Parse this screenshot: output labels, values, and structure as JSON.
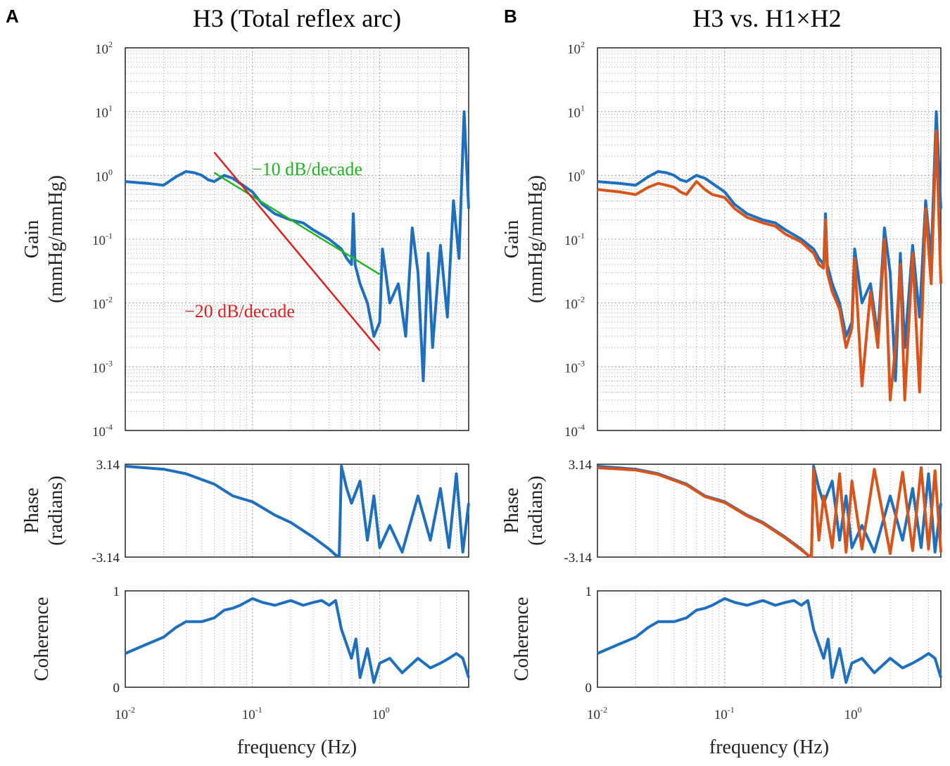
{
  "figure": {
    "panel_a": {
      "letter": "A",
      "title": "H3 (Total reflex arc)"
    },
    "panel_b": {
      "letter": "B",
      "title": "H3 vs. H1×H2"
    },
    "colors": {
      "h3": "#1f6fbf",
      "h1xh2": "#d9541a",
      "green": "#22b522",
      "red": "#e02020",
      "grid": "#9a9a9a"
    }
  },
  "chart_data": [
    {
      "panel": "A",
      "type": "line",
      "title": "H3 (Total reflex arc)",
      "xlabel": "frequency (Hz)",
      "xscale": "log",
      "xlim": [
        0.01,
        5
      ],
      "x_tick_labels": [
        "10^-2",
        "10^-1",
        "10^0"
      ],
      "subplots": [
        {
          "name": "gain",
          "ylabel": [
            "Gain",
            "(mmHg/mmHg)"
          ],
          "yscale": "log",
          "ylim": [
            0.0001,
            100
          ],
          "y_tick_labels": [
            "10^2",
            "10^1",
            "10^0",
            "10^-1",
            "10^-2",
            "10^-3",
            "10^-4"
          ],
          "series": [
            {
              "name": "H3",
              "color": "#1f6fbf",
              "x": [
                0.01,
                0.015,
                0.02,
                0.025,
                0.03,
                0.035,
                0.04,
                0.045,
                0.05,
                0.06,
                0.07,
                0.08,
                0.1,
                0.12,
                0.15,
                0.2,
                0.25,
                0.3,
                0.4,
                0.5,
                0.55,
                0.6,
                0.62,
                0.64,
                0.7,
                0.8,
                0.9,
                1.0,
                1.05,
                1.2,
                1.4,
                1.6,
                1.8,
                2.0,
                2.2,
                2.4,
                2.6,
                3.0,
                3.4,
                3.8,
                4.2,
                4.6,
                5.0
              ],
              "y": [
                0.8,
                0.75,
                0.7,
                0.95,
                1.15,
                1.1,
                1.0,
                0.85,
                0.8,
                1.0,
                0.9,
                0.75,
                0.55,
                0.35,
                0.25,
                0.2,
                0.18,
                0.14,
                0.1,
                0.07,
                0.05,
                0.04,
                0.25,
                0.04,
                0.02,
                0.01,
                0.003,
                0.005,
                0.07,
                0.01,
                0.02,
                0.003,
                0.15,
                0.03,
                0.0006,
                0.06,
                0.002,
                0.08,
                0.006,
                0.4,
                0.05,
                10,
                0.3
              ]
            },
            {
              "name": "-10 dB/decade",
              "color": "#22b522",
              "x": [
                0.05,
                1.0
              ],
              "y": [
                1.1,
                0.028
              ]
            },
            {
              "name": "-20 dB/decade",
              "color": "#e02020",
              "x": [
                0.05,
                1.0
              ],
              "y": [
                2.3,
                0.0018
              ]
            }
          ]
        },
        {
          "name": "phase",
          "ylabel": [
            "Phase",
            "(radians)"
          ],
          "ylim": [
            -3.14,
            3.14
          ],
          "y_tick_labels": [
            "3.14",
            "-3.14"
          ],
          "series": [
            {
              "name": "H3",
              "color": "#1f6fbf",
              "x": [
                0.01,
                0.02,
                0.03,
                0.05,
                0.07,
                0.1,
                0.15,
                0.2,
                0.3,
                0.4,
                0.45,
                0.48,
                0.5,
                0.55,
                0.6,
                0.7,
                0.8,
                0.9,
                1.0,
                1.2,
                1.5,
                2.0,
                2.5,
                3.0,
                3.5,
                4.0,
                4.5,
                5.0
              ],
              "y": [
                3.0,
                2.8,
                2.5,
                1.8,
                1.0,
                0.6,
                -0.3,
                -0.8,
                -1.8,
                -2.6,
                -3.0,
                -3.1,
                3.0,
                1.5,
                0.5,
                2.0,
                -2.0,
                1.0,
                -2.5,
                -1.0,
                -2.8,
                1.0,
                -2.0,
                1.5,
                -2.5,
                2.5,
                -2.8,
                0.5
              ]
            }
          ]
        },
        {
          "name": "coherence",
          "ylabel": [
            "Coherence"
          ],
          "ylim": [
            0,
            1
          ],
          "y_tick_labels": [
            "1",
            "0"
          ],
          "series": [
            {
              "name": "H3",
              "color": "#1f6fbf",
              "x": [
                0.01,
                0.015,
                0.02,
                0.025,
                0.03,
                0.04,
                0.05,
                0.06,
                0.07,
                0.08,
                0.1,
                0.12,
                0.15,
                0.2,
                0.25,
                0.3,
                0.35,
                0.4,
                0.45,
                0.5,
                0.6,
                0.65,
                0.7,
                0.8,
                0.9,
                1.0,
                1.2,
                1.5,
                2.0,
                2.5,
                3.0,
                3.5,
                4.0,
                4.5,
                5.0
              ],
              "y": [
                0.35,
                0.45,
                0.52,
                0.62,
                0.68,
                0.68,
                0.72,
                0.8,
                0.82,
                0.85,
                0.92,
                0.88,
                0.85,
                0.9,
                0.85,
                0.88,
                0.9,
                0.85,
                0.9,
                0.6,
                0.3,
                0.5,
                0.1,
                0.4,
                0.05,
                0.25,
                0.3,
                0.15,
                0.3,
                0.2,
                0.25,
                0.3,
                0.35,
                0.3,
                0.1
              ]
            }
          ]
        }
      ],
      "annotations": [
        "−10 dB/decade",
        "−20 dB/decade"
      ]
    },
    {
      "panel": "B",
      "type": "line",
      "title": "H3 vs. H1×H2",
      "xlabel": "frequency (Hz)",
      "xscale": "log",
      "xlim": [
        0.01,
        5
      ],
      "x_tick_labels": [
        "10^-2",
        "10^-1",
        "10^0"
      ],
      "subplots": [
        {
          "name": "gain",
          "ylabel": [
            "Gain",
            "(mmHg/mmHg)"
          ],
          "yscale": "log",
          "ylim": [
            0.0001,
            100
          ],
          "y_tick_labels": [
            "10^2",
            "10^1",
            "10^0",
            "10^-1",
            "10^-2",
            "10^-3",
            "10^-4"
          ],
          "series": [
            {
              "name": "H3",
              "color": "#1f6fbf",
              "x": [
                0.01,
                0.015,
                0.02,
                0.025,
                0.03,
                0.035,
                0.04,
                0.045,
                0.05,
                0.06,
                0.07,
                0.08,
                0.1,
                0.12,
                0.15,
                0.2,
                0.25,
                0.3,
                0.4,
                0.5,
                0.55,
                0.6,
                0.62,
                0.64,
                0.7,
                0.8,
                0.9,
                1.0,
                1.05,
                1.2,
                1.4,
                1.6,
                1.8,
                2.0,
                2.2,
                2.4,
                2.6,
                3.0,
                3.4,
                3.8,
                4.2,
                4.6,
                5.0
              ],
              "y": [
                0.8,
                0.75,
                0.7,
                0.95,
                1.15,
                1.1,
                1.0,
                0.85,
                0.8,
                1.0,
                0.9,
                0.75,
                0.55,
                0.35,
                0.25,
                0.2,
                0.18,
                0.14,
                0.1,
                0.07,
                0.05,
                0.04,
                0.25,
                0.04,
                0.02,
                0.01,
                0.003,
                0.005,
                0.07,
                0.01,
                0.02,
                0.003,
                0.15,
                0.03,
                0.0006,
                0.06,
                0.002,
                0.08,
                0.006,
                0.4,
                0.05,
                10,
                0.3
              ]
            },
            {
              "name": "H1×H2",
              "color": "#d9541a",
              "x": [
                0.01,
                0.015,
                0.02,
                0.025,
                0.03,
                0.035,
                0.04,
                0.045,
                0.05,
                0.06,
                0.07,
                0.08,
                0.1,
                0.12,
                0.15,
                0.2,
                0.25,
                0.3,
                0.4,
                0.5,
                0.55,
                0.6,
                0.62,
                0.64,
                0.7,
                0.8,
                0.9,
                1.0,
                1.05,
                1.2,
                1.4,
                1.6,
                1.8,
                2.0,
                2.2,
                2.4,
                2.6,
                3.0,
                3.4,
                3.8,
                4.2,
                4.6,
                5.0
              ],
              "y": [
                0.6,
                0.55,
                0.5,
                0.65,
                0.75,
                0.7,
                0.65,
                0.55,
                0.5,
                0.8,
                0.6,
                0.5,
                0.45,
                0.3,
                0.22,
                0.18,
                0.16,
                0.12,
                0.09,
                0.06,
                0.04,
                0.035,
                0.2,
                0.03,
                0.015,
                0.008,
                0.002,
                0.004,
                0.05,
                0.0005,
                0.015,
                0.002,
                0.1,
                0.0003,
                0.002,
                0.04,
                0.0003,
                0.06,
                0.0004,
                0.3,
                0.02,
                5,
                0.02
              ]
            }
          ]
        },
        {
          "name": "phase",
          "ylabel": [
            "Phase",
            "(radians)"
          ],
          "ylim": [
            -3.14,
            3.14
          ],
          "y_tick_labels": [
            "3.14",
            "-3.14"
          ],
          "series": [
            {
              "name": "H3",
              "color": "#1f6fbf",
              "x": [
                0.01,
                0.02,
                0.03,
                0.05,
                0.07,
                0.1,
                0.15,
                0.2,
                0.3,
                0.4,
                0.45,
                0.48,
                0.5,
                0.55,
                0.6,
                0.7,
                0.8,
                0.9,
                1.0,
                1.2,
                1.5,
                2.0,
                2.5,
                3.0,
                3.5,
                4.0,
                4.5,
                5.0
              ],
              "y": [
                3.0,
                2.8,
                2.5,
                1.8,
                1.0,
                0.6,
                -0.3,
                -0.8,
                -1.8,
                -2.6,
                -3.0,
                -3.1,
                3.0,
                1.5,
                0.5,
                2.0,
                -2.0,
                1.0,
                -2.5,
                -1.0,
                -2.8,
                1.0,
                -2.0,
                1.5,
                -2.5,
                2.5,
                -2.8,
                0.5
              ]
            },
            {
              "name": "H1×H2",
              "color": "#d9541a",
              "x": [
                0.01,
                0.02,
                0.03,
                0.05,
                0.07,
                0.1,
                0.15,
                0.2,
                0.3,
                0.4,
                0.45,
                0.48,
                0.5,
                0.55,
                0.6,
                0.7,
                0.8,
                0.9,
                1.0,
                1.2,
                1.5,
                2.0,
                2.5,
                3.0,
                3.5,
                4.0,
                4.5,
                5.0
              ],
              "y": [
                2.9,
                2.75,
                2.45,
                1.75,
                0.95,
                0.55,
                -0.35,
                -0.85,
                -1.85,
                -2.65,
                -3.0,
                -3.1,
                2.8,
                -2.0,
                1.0,
                -2.5,
                2.5,
                -2.8,
                2.0,
                -2.6,
                2.8,
                -2.9,
                2.6,
                -2.7,
                2.9,
                -2.6,
                2.7,
                -2.8
              ]
            }
          ]
        },
        {
          "name": "coherence",
          "ylabel": [
            "Coherence"
          ],
          "ylim": [
            0,
            1
          ],
          "y_tick_labels": [
            "1",
            "0"
          ],
          "series": [
            {
              "name": "H3",
              "color": "#1f6fbf",
              "x": [
                0.01,
                0.015,
                0.02,
                0.025,
                0.03,
                0.04,
                0.05,
                0.06,
                0.07,
                0.08,
                0.1,
                0.12,
                0.15,
                0.2,
                0.25,
                0.3,
                0.35,
                0.4,
                0.45,
                0.5,
                0.6,
                0.65,
                0.7,
                0.8,
                0.9,
                1.0,
                1.2,
                1.5,
                2.0,
                2.5,
                3.0,
                3.5,
                4.0,
                4.5,
                5.0
              ],
              "y": [
                0.35,
                0.45,
                0.52,
                0.62,
                0.68,
                0.68,
                0.72,
                0.8,
                0.82,
                0.85,
                0.92,
                0.88,
                0.85,
                0.9,
                0.85,
                0.88,
                0.9,
                0.85,
                0.9,
                0.6,
                0.3,
                0.5,
                0.1,
                0.4,
                0.05,
                0.25,
                0.3,
                0.15,
                0.3,
                0.2,
                0.25,
                0.3,
                0.35,
                0.3,
                0.1
              ]
            }
          ]
        }
      ]
    }
  ]
}
